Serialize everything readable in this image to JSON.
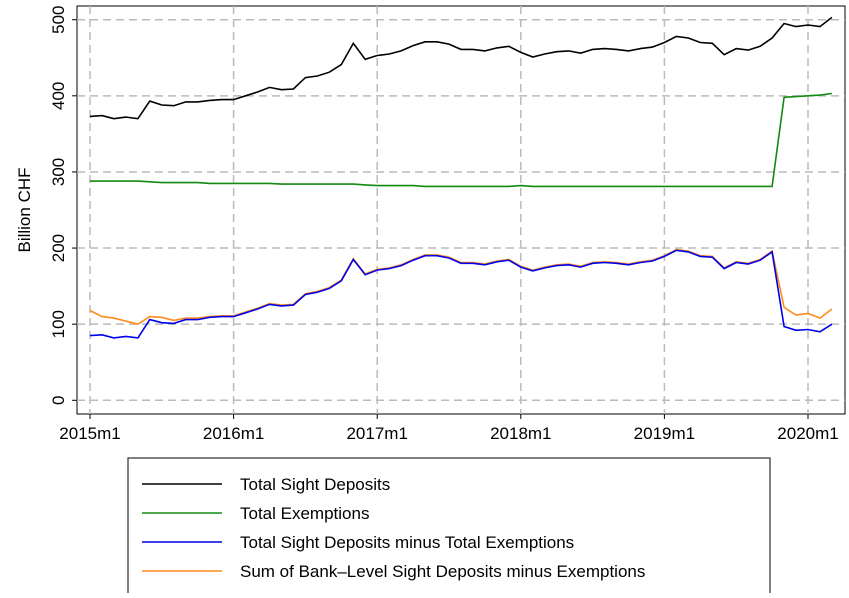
{
  "chart_data": {
    "type": "line",
    "y_label": "Billion CHF",
    "categories": [
      "2015m1",
      null,
      null,
      null,
      null,
      null,
      null,
      null,
      null,
      null,
      null,
      null,
      "2016m1",
      null,
      null,
      null,
      null,
      null,
      null,
      null,
      null,
      null,
      null,
      null,
      "2017m1",
      null,
      null,
      null,
      null,
      null,
      null,
      null,
      null,
      null,
      null,
      null,
      "2018m1",
      null,
      null,
      null,
      null,
      null,
      null,
      null,
      null,
      null,
      null,
      null,
      "2019m1",
      null,
      null,
      null,
      null,
      null,
      null,
      null,
      null,
      null,
      null,
      null,
      "2020m1",
      null,
      null
    ],
    "ylim": [
      -18,
      518
    ],
    "yticks": [
      0,
      100,
      200,
      300,
      400,
      500
    ],
    "grid": true,
    "legend": "bottom",
    "series": [
      {
        "name": "Total Sight Deposits",
        "color": "#000000",
        "values": [
          373,
          374,
          370,
          372,
          370,
          393,
          388,
          387,
          392,
          392,
          394,
          395,
          395,
          400,
          405,
          411,
          408,
          409,
          424,
          426,
          431,
          441,
          469,
          448,
          453,
          455,
          459,
          466,
          471,
          471,
          468,
          461,
          461,
          459,
          463,
          465,
          457,
          451,
          455,
          458,
          459,
          456,
          461,
          462,
          461,
          459,
          462,
          464,
          470,
          478,
          476,
          470,
          469,
          454,
          462,
          460,
          465,
          476,
          495,
          491,
          493,
          491,
          503
        ]
      },
      {
        "name": "Total Exemptions",
        "color": "#138a13",
        "values": [
          288,
          288,
          288,
          288,
          288,
          287,
          286,
          286,
          286,
          286,
          285,
          285,
          285,
          285,
          285,
          285,
          284,
          284,
          284,
          284,
          284,
          284,
          284,
          283,
          282,
          282,
          282,
          282,
          281,
          281,
          281,
          281,
          281,
          281,
          281,
          281,
          282,
          281,
          281,
          281,
          281,
          281,
          281,
          281,
          281,
          281,
          281,
          281,
          281,
          281,
          281,
          281,
          281,
          281,
          281,
          281,
          281,
          281,
          398,
          399,
          400,
          401,
          403
        ]
      },
      {
        "name": "Total Sight Deposits minus Total Exemptions",
        "color": "#0000ee",
        "values": [
          85,
          86,
          82,
          84,
          82,
          106,
          102,
          101,
          106,
          106,
          109,
          110,
          110,
          115,
          120,
          126,
          124,
          125,
          139,
          142,
          147,
          157,
          185,
          165,
          171,
          173,
          177,
          184,
          190,
          190,
          187,
          180,
          180,
          178,
          182,
          184,
          175,
          170,
          174,
          177,
          178,
          175,
          180,
          181,
          180,
          178,
          181,
          183,
          189,
          197,
          195,
          189,
          188,
          173,
          181,
          179,
          184,
          195,
          97,
          92,
          93,
          90,
          100
        ]
      },
      {
        "name": "Sum of Bank–Level Sight Deposits minus Exemptions",
        "color": "#ff8c1a",
        "values": [
          118,
          110,
          108,
          104,
          100,
          110,
          109,
          105,
          108,
          108,
          110,
          111,
          111,
          116,
          121,
          127,
          125,
          126,
          140,
          143,
          148,
          158,
          186,
          166,
          172,
          174,
          178,
          185,
          191,
          191,
          188,
          181,
          181,
          179,
          183,
          185,
          176,
          171,
          175,
          178,
          179,
          176,
          181,
          182,
          181,
          179,
          182,
          184,
          190,
          198,
          196,
          190,
          189,
          174,
          182,
          180,
          185,
          196,
          122,
          112,
          114,
          108,
          120
        ]
      }
    ]
  }
}
